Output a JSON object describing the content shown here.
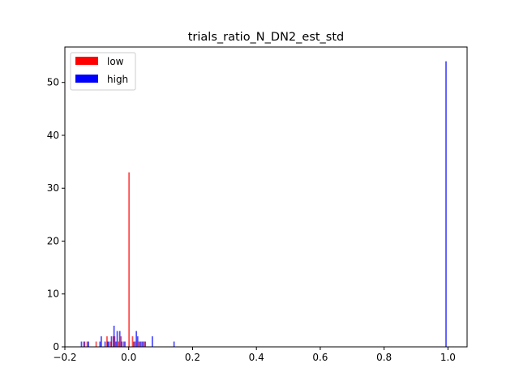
{
  "chart_data": {
    "type": "bar",
    "title": "trials_ratio_N_DN2_est_std",
    "xlabel": "",
    "ylabel": "",
    "xlim": [
      -0.2,
      1.06
    ],
    "ylim": [
      0,
      56.7
    ],
    "xticks": [
      -0.2,
      0.0,
      0.2,
      0.4,
      0.6,
      0.8,
      1.0
    ],
    "xtick_labels": [
      "−0.2",
      "0.0",
      "0.2",
      "0.4",
      "0.6",
      "0.8",
      "1.0"
    ],
    "yticks": [
      0,
      10,
      20,
      30,
      40,
      50
    ],
    "ytick_labels": [
      "0",
      "10",
      "20",
      "30",
      "40",
      "50"
    ],
    "grid": false,
    "legend_position": "top-left",
    "bin_width": 0.0044,
    "series": [
      {
        "name": "low",
        "color": "#ff0000",
        "bins": [
          {
            "x": -0.138,
            "count": 1
          },
          {
            "x": -0.13,
            "count": 1
          },
          {
            "x": -0.102,
            "count": 1
          },
          {
            "x": -0.068,
            "count": 2
          },
          {
            "x": -0.056,
            "count": 1
          },
          {
            "x": -0.048,
            "count": 2
          },
          {
            "x": -0.044,
            "count": 2
          },
          {
            "x": -0.032,
            "count": 1
          },
          {
            "x": -0.024,
            "count": 2
          },
          {
            "x": -0.016,
            "count": 1
          },
          {
            "x": 0.001,
            "count": 33
          },
          {
            "x": 0.012,
            "count": 2
          },
          {
            "x": 0.02,
            "count": 1
          },
          {
            "x": 0.032,
            "count": 1
          },
          {
            "x": 0.04,
            "count": 1
          },
          {
            "x": 0.048,
            "count": 1
          }
        ]
      },
      {
        "name": "high",
        "color": "#0000ff",
        "bins": [
          {
            "x": -0.148,
            "count": 1
          },
          {
            "x": -0.14,
            "count": 1
          },
          {
            "x": -0.126,
            "count": 1
          },
          {
            "x": -0.09,
            "count": 1
          },
          {
            "x": -0.086,
            "count": 2
          },
          {
            "x": -0.074,
            "count": 1
          },
          {
            "x": -0.066,
            "count": 1
          },
          {
            "x": -0.062,
            "count": 1
          },
          {
            "x": -0.054,
            "count": 2
          },
          {
            "x": -0.046,
            "count": 4
          },
          {
            "x": -0.04,
            "count": 1
          },
          {
            "x": -0.036,
            "count": 3
          },
          {
            "x": -0.028,
            "count": 3
          },
          {
            "x": -0.022,
            "count": 1
          },
          {
            "x": -0.012,
            "count": 1
          },
          {
            "x": 0.016,
            "count": 1
          },
          {
            "x": 0.024,
            "count": 3
          },
          {
            "x": 0.028,
            "count": 2
          },
          {
            "x": 0.036,
            "count": 1
          },
          {
            "x": 0.044,
            "count": 1
          },
          {
            "x": 0.052,
            "count": 1
          },
          {
            "x": 0.074,
            "count": 2
          },
          {
            "x": 0.142,
            "count": 1
          },
          {
            "x": 0.994,
            "count": 54
          }
        ]
      }
    ]
  }
}
